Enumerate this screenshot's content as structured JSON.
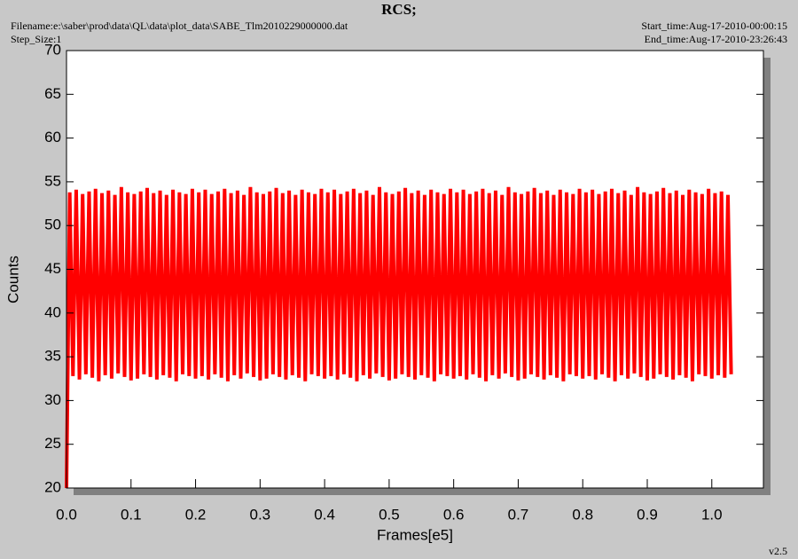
{
  "chart_data": {
    "type": "line",
    "title": "RCS;",
    "filename": "Filename:e:\\saber\\prod\\data\\QL\\data\\plot_data\\SABE_Tlm2010229000000.dat",
    "step_size": "Step_Size:1",
    "start_time": "Start_time:Aug-17-2010-00:00:15",
    "end_time": "End_time:Aug-17-2010-23:26:43",
    "version": "v2.5",
    "xlabel": "Frames[e5]",
    "ylabel": "Counts",
    "color": "#ff0000",
    "xlim": [
      0,
      1.08
    ],
    "xticks": [
      {
        "value": 0,
        "label": "0.0"
      },
      0.1,
      0.2,
      0.3,
      0.4,
      0.5,
      0.6,
      0.7,
      0.8,
      0.9,
      {
        "value": 1,
        "label": "1.0"
      }
    ],
    "ylim": [
      20,
      70
    ],
    "yticks": [
      20,
      25,
      30,
      35,
      40,
      45,
      50,
      55,
      60,
      65,
      70
    ],
    "x": [
      0,
      0.005,
      0.01,
      0.015,
      0.02,
      0.025,
      0.03,
      0.035,
      0.04,
      0.045,
      0.05,
      0.055,
      0.06,
      0.065,
      0.07,
      0.075,
      0.08,
      0.085,
      0.09,
      0.095,
      0.1,
      0.105,
      0.11,
      0.115,
      0.12,
      0.125,
      0.13,
      0.135,
      0.14,
      0.145,
      0.15,
      0.155,
      0.16,
      0.165,
      0.17,
      0.175,
      0.18,
      0.185,
      0.19,
      0.195,
      0.2,
      0.205,
      0.21,
      0.215,
      0.22,
      0.225,
      0.23,
      0.235,
      0.24,
      0.245,
      0.25,
      0.255,
      0.26,
      0.265,
      0.27,
      0.275,
      0.28,
      0.285,
      0.29,
      0.295,
      0.3,
      0.305,
      0.31,
      0.315,
      0.32,
      0.325,
      0.33,
      0.335,
      0.34,
      0.345,
      0.35,
      0.355,
      0.36,
      0.365,
      0.37,
      0.375,
      0.38,
      0.385,
      0.39,
      0.395,
      0.4,
      0.405,
      0.41,
      0.415,
      0.42,
      0.425,
      0.43,
      0.435,
      0.44,
      0.445,
      0.45,
      0.455,
      0.46,
      0.465,
      0.47,
      0.475,
      0.48,
      0.485,
      0.49,
      0.495,
      0.5,
      0.505,
      0.51,
      0.515,
      0.52,
      0.525,
      0.53,
      0.535,
      0.54,
      0.545,
      0.55,
      0.555,
      0.56,
      0.565,
      0.57,
      0.575,
      0.58,
      0.585,
      0.59,
      0.595,
      0.6,
      0.605,
      0.61,
      0.615,
      0.62,
      0.625,
      0.63,
      0.635,
      0.64,
      0.645,
      0.65,
      0.655,
      0.66,
      0.665,
      0.67,
      0.675,
      0.68,
      0.685,
      0.69,
      0.695,
      0.7,
      0.705,
      0.71,
      0.715,
      0.72,
      0.725,
      0.73,
      0.735,
      0.74,
      0.745,
      0.75,
      0.755,
      0.76,
      0.765,
      0.77,
      0.775,
      0.78,
      0.785,
      0.79,
      0.795,
      0.8,
      0.805,
      0.81,
      0.815,
      0.82,
      0.825,
      0.83,
      0.835,
      0.84,
      0.845,
      0.85,
      0.855,
      0.86,
      0.865,
      0.87,
      0.875,
      0.88,
      0.885,
      0.89,
      0.895,
      0.9,
      0.905,
      0.91,
      0.915,
      0.92,
      0.925,
      0.93,
      0.935,
      0.94,
      0.945,
      0.95,
      0.955,
      0.96,
      0.965,
      0.97,
      0.975,
      0.98,
      0.985,
      0.99,
      0.995,
      1,
      1.005,
      1.01,
      1.015,
      1.02,
      1.025,
      1.03
    ],
    "values": [
      20,
      53.8,
      32.8,
      54.1,
      32.4,
      53.6,
      33.0,
      53.9,
      32.6,
      54.2,
      32.2,
      53.7,
      32.9,
      54.0,
      32.5,
      53.5,
      33.1,
      54.4,
      32.7,
      53.8,
      32.3,
      53.6,
      32.5,
      53.9,
      33.0,
      54.3,
      32.7,
      53.7,
      32.4,
      54.0,
      32.9,
      53.5,
      32.6,
      54.1,
      32.2,
      53.8,
      33.0,
      53.6,
      32.8,
      54.2,
      32.5,
      53.8,
      32.8,
      54.1,
      32.4,
      53.6,
      33.0,
      53.9,
      32.6,
      54.2,
      32.2,
      53.7,
      32.9,
      54.0,
      32.5,
      53.5,
      33.1,
      54.4,
      32.7,
      53.8,
      32.3,
      53.6,
      32.5,
      53.9,
      33.0,
      54.3,
      32.7,
      53.7,
      32.4,
      54.0,
      32.9,
      53.5,
      32.6,
      54.1,
      32.2,
      53.8,
      33.0,
      53.6,
      32.8,
      54.2,
      32.5,
      53.8,
      32.8,
      54.1,
      32.4,
      53.6,
      33.0,
      53.9,
      32.6,
      54.2,
      32.2,
      53.7,
      32.9,
      54.0,
      32.5,
      53.5,
      33.1,
      54.4,
      32.7,
      53.8,
      32.3,
      53.6,
      32.5,
      53.9,
      33.0,
      54.3,
      32.7,
      53.7,
      32.4,
      54.0,
      32.9,
      53.5,
      32.6,
      54.1,
      32.2,
      53.8,
      33.0,
      53.6,
      32.8,
      54.2,
      32.5,
      53.8,
      32.8,
      54.1,
      32.4,
      53.6,
      33.0,
      53.9,
      32.6,
      54.2,
      32.2,
      53.7,
      32.9,
      54.0,
      32.5,
      53.5,
      33.1,
      54.4,
      32.7,
      53.8,
      32.3,
      53.6,
      32.5,
      53.9,
      33.0,
      54.3,
      32.7,
      53.7,
      32.4,
      54.0,
      32.9,
      53.5,
      32.6,
      54.1,
      32.2,
      53.8,
      33.0,
      53.6,
      32.8,
      54.2,
      32.5,
      53.8,
      32.8,
      54.1,
      32.4,
      53.6,
      33.0,
      53.9,
      32.6,
      54.2,
      32.2,
      53.7,
      32.9,
      54.0,
      32.5,
      53.5,
      33.1,
      54.4,
      32.7,
      53.8,
      32.3,
      53.6,
      32.5,
      53.9,
      33.0,
      54.3,
      32.7,
      53.7,
      32.4,
      54.0,
      32.9,
      53.5,
      32.6,
      54.1,
      32.2,
      53.8,
      33.0,
      53.6,
      32.8,
      54.2,
      32.5,
      53.7,
      32.9,
      53.9,
      32.6,
      53.5,
      33.0
    ]
  }
}
